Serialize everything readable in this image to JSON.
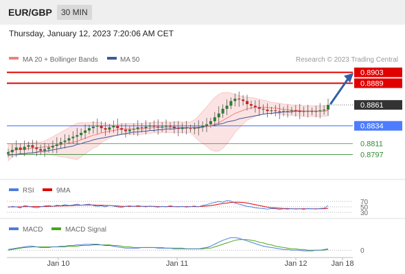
{
  "header": {
    "symbol": "EUR/GBP",
    "timeframe": "30 MIN"
  },
  "date_line": "Thursday, January 12, 2023 7:20:06 AM CET",
  "colors": {
    "bollinger": "#f08080",
    "ma50": "#3d5a98",
    "resistance": "#e00000",
    "current": "#333333",
    "pivot": "#4d7cff",
    "support": "#2e8b2e",
    "rsi": "#4d7cdd",
    "rsi_ma": "#e00000",
    "macd": "#4d7cdd",
    "macd_signal": "#49a51b",
    "arrow": "#2f5fa8"
  },
  "chart_data": [
    {
      "type": "line",
      "title": "",
      "legend": [
        {
          "name": "MA 20 + Bollinger Bands"
        },
        {
          "name": "MA 50"
        }
      ],
      "credit": "Research © 2023 Trading Central",
      "x_ticks": [
        "Jan 10",
        "Jan 11",
        "Jan 12",
        "Jan 18"
      ],
      "price_range": [
        0.8786,
        0.8908
      ],
      "current_price": "0.8861",
      "levels": [
        {
          "value": 0.8903,
          "label": "0.8903",
          "kind": "resistance"
        },
        {
          "value": 0.8889,
          "label": "0.8889",
          "kind": "resistance"
        },
        {
          "value": 0.8834,
          "label": "0.8834",
          "kind": "pivot"
        },
        {
          "value": 0.8811,
          "label": "0.8811",
          "kind": "support"
        },
        {
          "value": 0.8797,
          "label": "0.8797",
          "kind": "support"
        }
      ],
      "closes": [
        0.88,
        0.8803,
        0.8806,
        0.8803,
        0.8807,
        0.8809,
        0.8806,
        0.8804,
        0.8802,
        0.8804,
        0.8806,
        0.8808,
        0.881,
        0.8813,
        0.8815,
        0.8818,
        0.882,
        0.8822,
        0.8825,
        0.8828,
        0.8831,
        0.8833,
        0.8834,
        0.8831,
        0.8829,
        0.8832,
        0.8834,
        0.8831,
        0.8829,
        0.8827,
        0.8829,
        0.883,
        0.8832,
        0.8831,
        0.8833,
        0.8834,
        0.8833,
        0.8832,
        0.8833,
        0.8834,
        0.8833,
        0.8831,
        0.883,
        0.8832,
        0.8831,
        0.883,
        0.8831,
        0.8832,
        0.8834,
        0.8836,
        0.884,
        0.8845,
        0.885,
        0.8856,
        0.886,
        0.8866,
        0.8869,
        0.8868,
        0.8866,
        0.8862,
        0.886,
        0.8858,
        0.8856,
        0.8855,
        0.8853,
        0.8854,
        0.8853,
        0.8852,
        0.8853,
        0.8853,
        0.8854,
        0.8853,
        0.8852,
        0.8853,
        0.8853,
        0.8852,
        0.8853,
        0.8854,
        0.8855,
        0.8861
      ],
      "ma20": [
        0.88,
        0.8802,
        0.8803,
        0.8804,
        0.8804,
        0.8805,
        0.8805,
        0.8806,
        0.8806,
        0.8807,
        0.8807,
        0.8808,
        0.8809,
        0.881,
        0.8811,
        0.8812,
        0.8813,
        0.8814,
        0.8816,
        0.8818,
        0.882,
        0.8822,
        0.8823,
        0.8825,
        0.8826,
        0.8827,
        0.8828,
        0.8829,
        0.883,
        0.883,
        0.883,
        0.883,
        0.883,
        0.883,
        0.8831,
        0.8831,
        0.8832,
        0.8832,
        0.8832,
        0.8832,
        0.8832,
        0.8832,
        0.8832,
        0.8832,
        0.8832,
        0.8832,
        0.8831,
        0.8831,
        0.8832,
        0.8833,
        0.8834,
        0.8836,
        0.8838,
        0.8841,
        0.8844,
        0.8847,
        0.885,
        0.8852,
        0.8854,
        0.8856,
        0.8857,
        0.8858,
        0.8858,
        0.8858,
        0.8858,
        0.8857,
        0.8857,
        0.8856,
        0.8855,
        0.8855,
        0.8854,
        0.8854,
        0.8854,
        0.8853,
        0.8853,
        0.8853,
        0.8853,
        0.8853,
        0.8853,
        0.8854
      ],
      "ma50": [
        0.8796,
        0.8797,
        0.8797,
        0.8798,
        0.8798,
        0.8799,
        0.8799,
        0.88,
        0.8801,
        0.8801,
        0.8802,
        0.8803,
        0.8804,
        0.8805,
        0.8806,
        0.8807,
        0.8808,
        0.881,
        0.8811,
        0.8813,
        0.8814,
        0.8816,
        0.8817,
        0.8818,
        0.8819,
        0.882,
        0.8821,
        0.8822,
        0.8823,
        0.8824,
        0.8825,
        0.8826,
        0.8826,
        0.8827,
        0.8827,
        0.8828,
        0.8828,
        0.8829,
        0.8829,
        0.883,
        0.883,
        0.883,
        0.8831,
        0.8831,
        0.8831,
        0.8832,
        0.8832,
        0.8832,
        0.8833,
        0.8833,
        0.8834,
        0.8835,
        0.8836,
        0.8837,
        0.8839,
        0.884,
        0.8841,
        0.8843,
        0.8844,
        0.8845,
        0.8846,
        0.8847,
        0.8848,
        0.8849,
        0.885,
        0.885,
        0.8851,
        0.8851,
        0.8852,
        0.8852,
        0.8852,
        0.8853,
        0.8853,
        0.8853,
        0.8853,
        0.8853,
        0.8853,
        0.8853,
        0.8853,
        0.8854
      ]
    },
    {
      "type": "line",
      "title": "",
      "legend": [
        {
          "name": "RSI"
        },
        {
          "name": "9MA"
        }
      ],
      "y_ticks": [
        "70",
        "50",
        "30"
      ],
      "range": [
        15,
        85
      ],
      "rsi": [
        48,
        52,
        50,
        46,
        55,
        52,
        49,
        47,
        50,
        53,
        55,
        52,
        56,
        54,
        58,
        55,
        57,
        60,
        56,
        58,
        60,
        55,
        52,
        54,
        50,
        56,
        53,
        50,
        48,
        52,
        54,
        51,
        55,
        52,
        50,
        53,
        51,
        49,
        52,
        50,
        54,
        51,
        50,
        52,
        49,
        51,
        53,
        50,
        55,
        58,
        63,
        66,
        70,
        67,
        73,
        71,
        64,
        60,
        56,
        52,
        50,
        47,
        45,
        44,
        42,
        44,
        43,
        41,
        43,
        42,
        44,
        42,
        43,
        41,
        44,
        43,
        42,
        44,
        45,
        55
      ],
      "rsi_ma": [
        50,
        50,
        50,
        50,
        51,
        51,
        51,
        51,
        51,
        51,
        52,
        52,
        53,
        53,
        54,
        54,
        55,
        56,
        56,
        57,
        57,
        57,
        56,
        56,
        55,
        55,
        54,
        53,
        52,
        52,
        52,
        52,
        52,
        52,
        52,
        52,
        52,
        51,
        51,
        51,
        51,
        51,
        51,
        51,
        51,
        51,
        51,
        51,
        52,
        53,
        55,
        57,
        60,
        62,
        64,
        66,
        67,
        67,
        66,
        64,
        61,
        58,
        55,
        52,
        49,
        47,
        46,
        45,
        44,
        44,
        43,
        43,
        43,
        43,
        43,
        43,
        43,
        43,
        43,
        45
      ]
    },
    {
      "type": "line",
      "title": "",
      "legend": [
        {
          "name": "MACD"
        },
        {
          "name": "MACD Signal"
        }
      ],
      "y_ticks": [
        "0"
      ],
      "range": [
        -0.0006,
        0.0022
      ],
      "macd": [
        0.0001,
        0.0002,
        0.0003,
        0.0004,
        0.0005,
        0.0006,
        0.0006,
        0.0005,
        0.0004,
        0.0004,
        0.0004,
        0.0005,
        0.0005,
        0.0006,
        0.0006,
        0.0007,
        0.0007,
        0.0008,
        0.0008,
        0.0009,
        0.0009,
        0.0009,
        0.0009,
        0.0008,
        0.0007,
        0.0007,
        0.0006,
        0.0005,
        0.0004,
        0.0003,
        0.0003,
        0.0003,
        0.0003,
        0.0004,
        0.0004,
        0.0004,
        0.0004,
        0.0003,
        0.0003,
        0.0003,
        0.0003,
        0.0002,
        0.0002,
        0.0002,
        0.0002,
        0.0002,
        0.0002,
        0.0002,
        0.0003,
        0.0004,
        0.0006,
        0.0009,
        0.0012,
        0.0015,
        0.0017,
        0.0019,
        0.0019,
        0.0018,
        0.0016,
        0.0014,
        0.0012,
        0.001,
        0.0008,
        0.0006,
        0.0005,
        0.0004,
        0.0003,
        0.0002,
        0.0001,
        0.0001,
        0.0,
        0.0,
        0.0,
        -0.0001,
        -0.0001,
        -0.0001,
        0.0,
        0.0,
        0.0001,
        0.0002
      ],
      "signal": [
        0.0,
        0.0001,
        0.0002,
        0.0003,
        0.0004,
        0.0004,
        0.0005,
        0.0005,
        0.0005,
        0.0005,
        0.0005,
        0.0005,
        0.0005,
        0.0005,
        0.0005,
        0.0006,
        0.0006,
        0.0006,
        0.0007,
        0.0007,
        0.0007,
        0.0008,
        0.0008,
        0.0008,
        0.0008,
        0.0008,
        0.0007,
        0.0007,
        0.0006,
        0.0005,
        0.0005,
        0.0004,
        0.0004,
        0.0004,
        0.0004,
        0.0004,
        0.0004,
        0.0004,
        0.0004,
        0.0003,
        0.0003,
        0.0003,
        0.0003,
        0.0003,
        0.0002,
        0.0002,
        0.0002,
        0.0002,
        0.0002,
        0.0003,
        0.0003,
        0.0005,
        0.0007,
        0.0009,
        0.0011,
        0.0013,
        0.0015,
        0.0016,
        0.0016,
        0.0016,
        0.0015,
        0.0014,
        0.0012,
        0.0011,
        0.0009,
        0.0008,
        0.0006,
        0.0005,
        0.0004,
        0.0003,
        0.0002,
        0.0002,
        0.0001,
        0.0001,
        0.0,
        0.0,
        0.0,
        0.0,
        0.0,
        0.0001
      ]
    }
  ]
}
